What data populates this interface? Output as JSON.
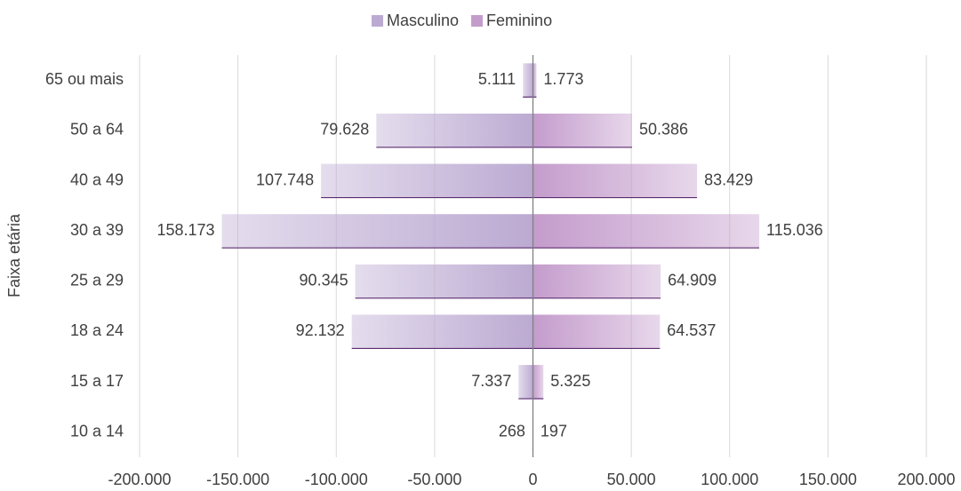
{
  "chart_data": {
    "type": "bar",
    "orientation": "horizontal",
    "stacked": true,
    "y_axis_label": "Faixa etária",
    "categories": [
      "65 ou mais",
      "50 a 64",
      "40 a 49",
      "30 a 39",
      "25 a 29",
      "18 a 24",
      "15 a 17",
      "10 a 14"
    ],
    "series": [
      {
        "name": "Masculino",
        "color": "#bcaad2",
        "values": [
          -5111,
          -79628,
          -107748,
          -158173,
          -90345,
          -92132,
          -7337,
          -268
        ],
        "value_labels": [
          "5.111",
          "79.628",
          "107.748",
          "158.173",
          "90.345",
          "92.132",
          "7.337",
          "268"
        ]
      },
      {
        "name": "Feminino",
        "color": "#c49ccc",
        "values": [
          1773,
          50386,
          83429,
          115036,
          64909,
          64537,
          5325,
          197
        ],
        "value_labels": [
          "1.773",
          "50.386",
          "83.429",
          "115.036",
          "64.909",
          "64.537",
          "5.325",
          "197"
        ]
      }
    ],
    "xlim": [
      -200000,
      200000
    ],
    "xticks": [
      {
        "value": -200000,
        "label": "-200.000"
      },
      {
        "value": -150000,
        "label": "-150.000"
      },
      {
        "value": -100000,
        "label": "-100.000"
      },
      {
        "value": -50000,
        "label": "-50.000"
      },
      0,
      {
        "value": 50000,
        "label": "50.000"
      },
      {
        "value": 100000,
        "label": "100.000"
      },
      {
        "value": 150000,
        "label": "150.000"
      },
      {
        "value": 200000,
        "label": "200.000"
      }
    ],
    "grid": true,
    "legend": "top"
  }
}
